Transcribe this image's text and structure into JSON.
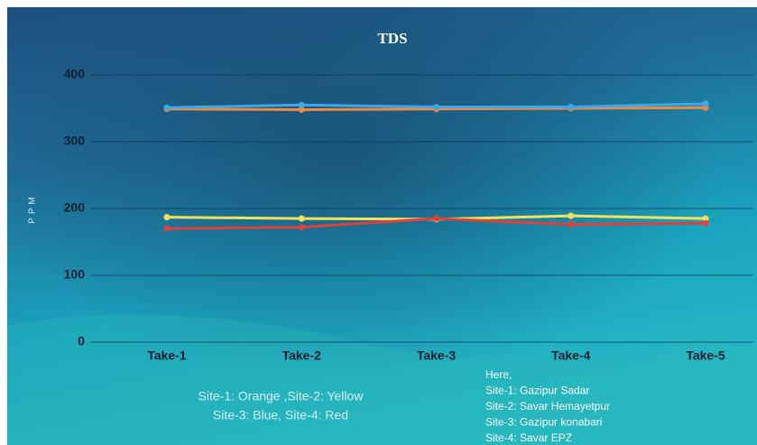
{
  "chart_data": {
    "type": "line",
    "title": "TDS",
    "y_label": "PPM",
    "categories": [
      "Take-1",
      "Take-2",
      "Take-3",
      "Take-4",
      "Take-5"
    ],
    "series": [
      {
        "color": "#f08a3c",
        "values": [
          349,
          348,
          349,
          350,
          351
        ]
      },
      {
        "color": "#f2e25a",
        "values": [
          187,
          185,
          184,
          189,
          185
        ]
      },
      {
        "color": "#3fa6e8",
        "values": [
          351,
          355,
          352,
          352,
          357
        ]
      },
      {
        "color": "#e0403a",
        "values": [
          170,
          172,
          185,
          176,
          178
        ]
      }
    ],
    "ylim": [
      0,
      400
    ],
    "yticks": [
      0,
      100,
      200,
      300,
      400
    ],
    "grid": true,
    "color_note": [
      "Site-1: Orange ,Site-2: Yellow",
      "Site-3: Blue, Site-4: Red"
    ],
    "site_note": [
      "Here,",
      "Site-1: Gazipur Sadar",
      "Site-2: Savar Hemayetpur",
      "Site-3: Gazipur konabari",
      "Site-4: Savar EPZ"
    ]
  }
}
